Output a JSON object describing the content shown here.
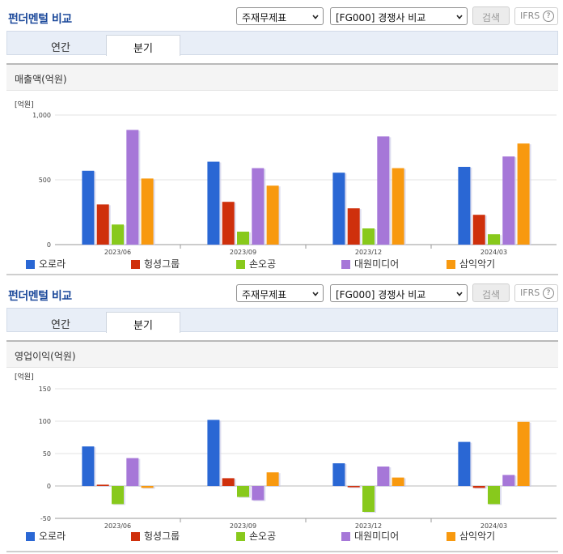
{
  "colors": {
    "series": [
      "#2a67d4",
      "#cf300c",
      "#88c91c",
      "#a677d8",
      "#f8990f"
    ]
  },
  "panels": [
    {
      "header": {
        "title": "펀더멘털 비교",
        "statement_select": "주재무제표",
        "compare_select": "[FG000] 경쟁사 비교",
        "search_label": "검색",
        "ifrs_label": "IFRS",
        "help_glyph": "?"
      },
      "tabs": {
        "annual": "연간",
        "quarterly": "분기"
      },
      "section_title": "매출액(억원)"
    },
    {
      "header": {
        "title": "펀더멘털 비교",
        "statement_select": "주재무제표",
        "compare_select": "[FG000] 경쟁사 비교",
        "search_label": "검색",
        "ifrs_label": "IFRS",
        "help_glyph": "?"
      },
      "tabs": {
        "annual": "연간",
        "quarterly": "분기"
      },
      "section_title": "영업이익(억원)"
    }
  ],
  "chart_data": [
    {
      "type": "bar",
      "unit_label": "[억원]",
      "categories": [
        "2023/06",
        "2023/09",
        "2023/12",
        "2024/03"
      ],
      "ylim": [
        0,
        1000
      ],
      "yticks": [
        0,
        500,
        1000
      ],
      "ytick_labels": [
        "0",
        "500",
        "1,000"
      ],
      "series": [
        {
          "name": "오로라",
          "values": [
            570,
            640,
            555,
            600
          ]
        },
        {
          "name": "헝셩그룹",
          "values": [
            310,
            330,
            280,
            230
          ]
        },
        {
          "name": "손오공",
          "values": [
            155,
            100,
            125,
            80
          ]
        },
        {
          "name": "대원미디어",
          "values": [
            885,
            590,
            835,
            680
          ]
        },
        {
          "name": "삼익악기",
          "values": [
            510,
            455,
            590,
            780
          ]
        }
      ],
      "legend_position": "bottom",
      "grid": true
    },
    {
      "type": "bar",
      "unit_label": "[억원]",
      "categories": [
        "2023/06",
        "2023/09",
        "2023/12",
        "2024/03"
      ],
      "ylim": [
        -50,
        150
      ],
      "yticks": [
        -50,
        0,
        50,
        100,
        150
      ],
      "ytick_labels": [
        "-50",
        "0",
        "50",
        "100",
        "150"
      ],
      "series": [
        {
          "name": "오로라",
          "values": [
            61,
            102,
            35,
            68
          ]
        },
        {
          "name": "헝셩그룹",
          "values": [
            2,
            12,
            -2,
            -3
          ]
        },
        {
          "name": "손오공",
          "values": [
            -28,
            -17,
            -40,
            -28
          ]
        },
        {
          "name": "대원미디어",
          "values": [
            43,
            -22,
            30,
            17
          ]
        },
        {
          "name": "삼익악기",
          "values": [
            -3,
            21,
            13,
            99
          ]
        }
      ],
      "legend_position": "bottom",
      "grid": true
    }
  ]
}
